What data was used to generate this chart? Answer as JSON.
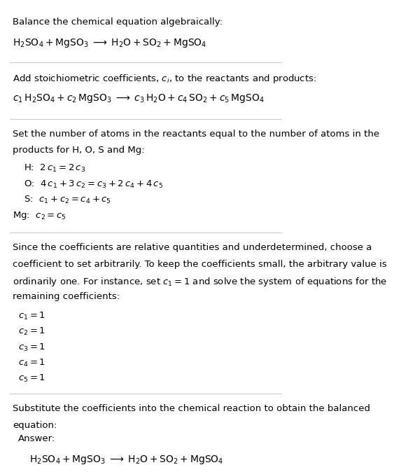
{
  "bg_color": "#ffffff",
  "text_color": "#000000",
  "separator_color": "#cccccc",
  "answer_box_color": "#e8f4f8",
  "answer_box_edge": "#a0c8d8",
  "section1_title": "Balance the chemical equation algebraically:",
  "section1_eq": "$\\mathregular{H_2SO_4 + MgSO_3 \\;\\longrightarrow\\; H_2O + SO_2 + MgSO_4}$",
  "section2_title": "Add stoichiometric coefficients, $c_i$, to the reactants and products:",
  "section2_eq": "$c_1\\, \\mathregular{H_2SO_4} + c_2\\, \\mathregular{MgSO_3} \\;\\longrightarrow\\; c_3\\, \\mathregular{H_2O} + c_4\\, \\mathregular{SO_2} + c_5\\, \\mathregular{MgSO_4}$",
  "section3_title": "Set the number of atoms in the reactants equal to the number of atoms in the\nproducts for H, O, S and Mg:",
  "section3_eqs": [
    "H:  $2\\,c_1 = 2\\,c_3$",
    "O:  $4\\,c_1 + 3\\,c_2 = c_3 + 2\\,c_4 + 4\\,c_5$",
    "S:  $c_1 + c_2 = c_4 + c_5$",
    "Mg:  $c_2 = c_5$"
  ],
  "section4_title": "Since the coefficients are relative quantities and underdetermined, choose a\ncoefficient to set arbitrarily. To keep the coefficients small, the arbitrary value is\nordinarily one. For instance, set $c_1 = 1$ and solve the system of equations for the\nremaining coefficients:",
  "section4_eqs": [
    "$c_1 = 1$",
    "$c_2 = 1$",
    "$c_3 = 1$",
    "$c_4 = 1$",
    "$c_5 = 1$"
  ],
  "section5_title": "Substitute the coefficients into the chemical reaction to obtain the balanced\nequation:",
  "answer_label": "Answer:",
  "answer_eq": "$\\mathregular{H_2SO_4 + MgSO_3 \\;\\longrightarrow\\; H_2O + SO_2 + MgSO_4}$"
}
